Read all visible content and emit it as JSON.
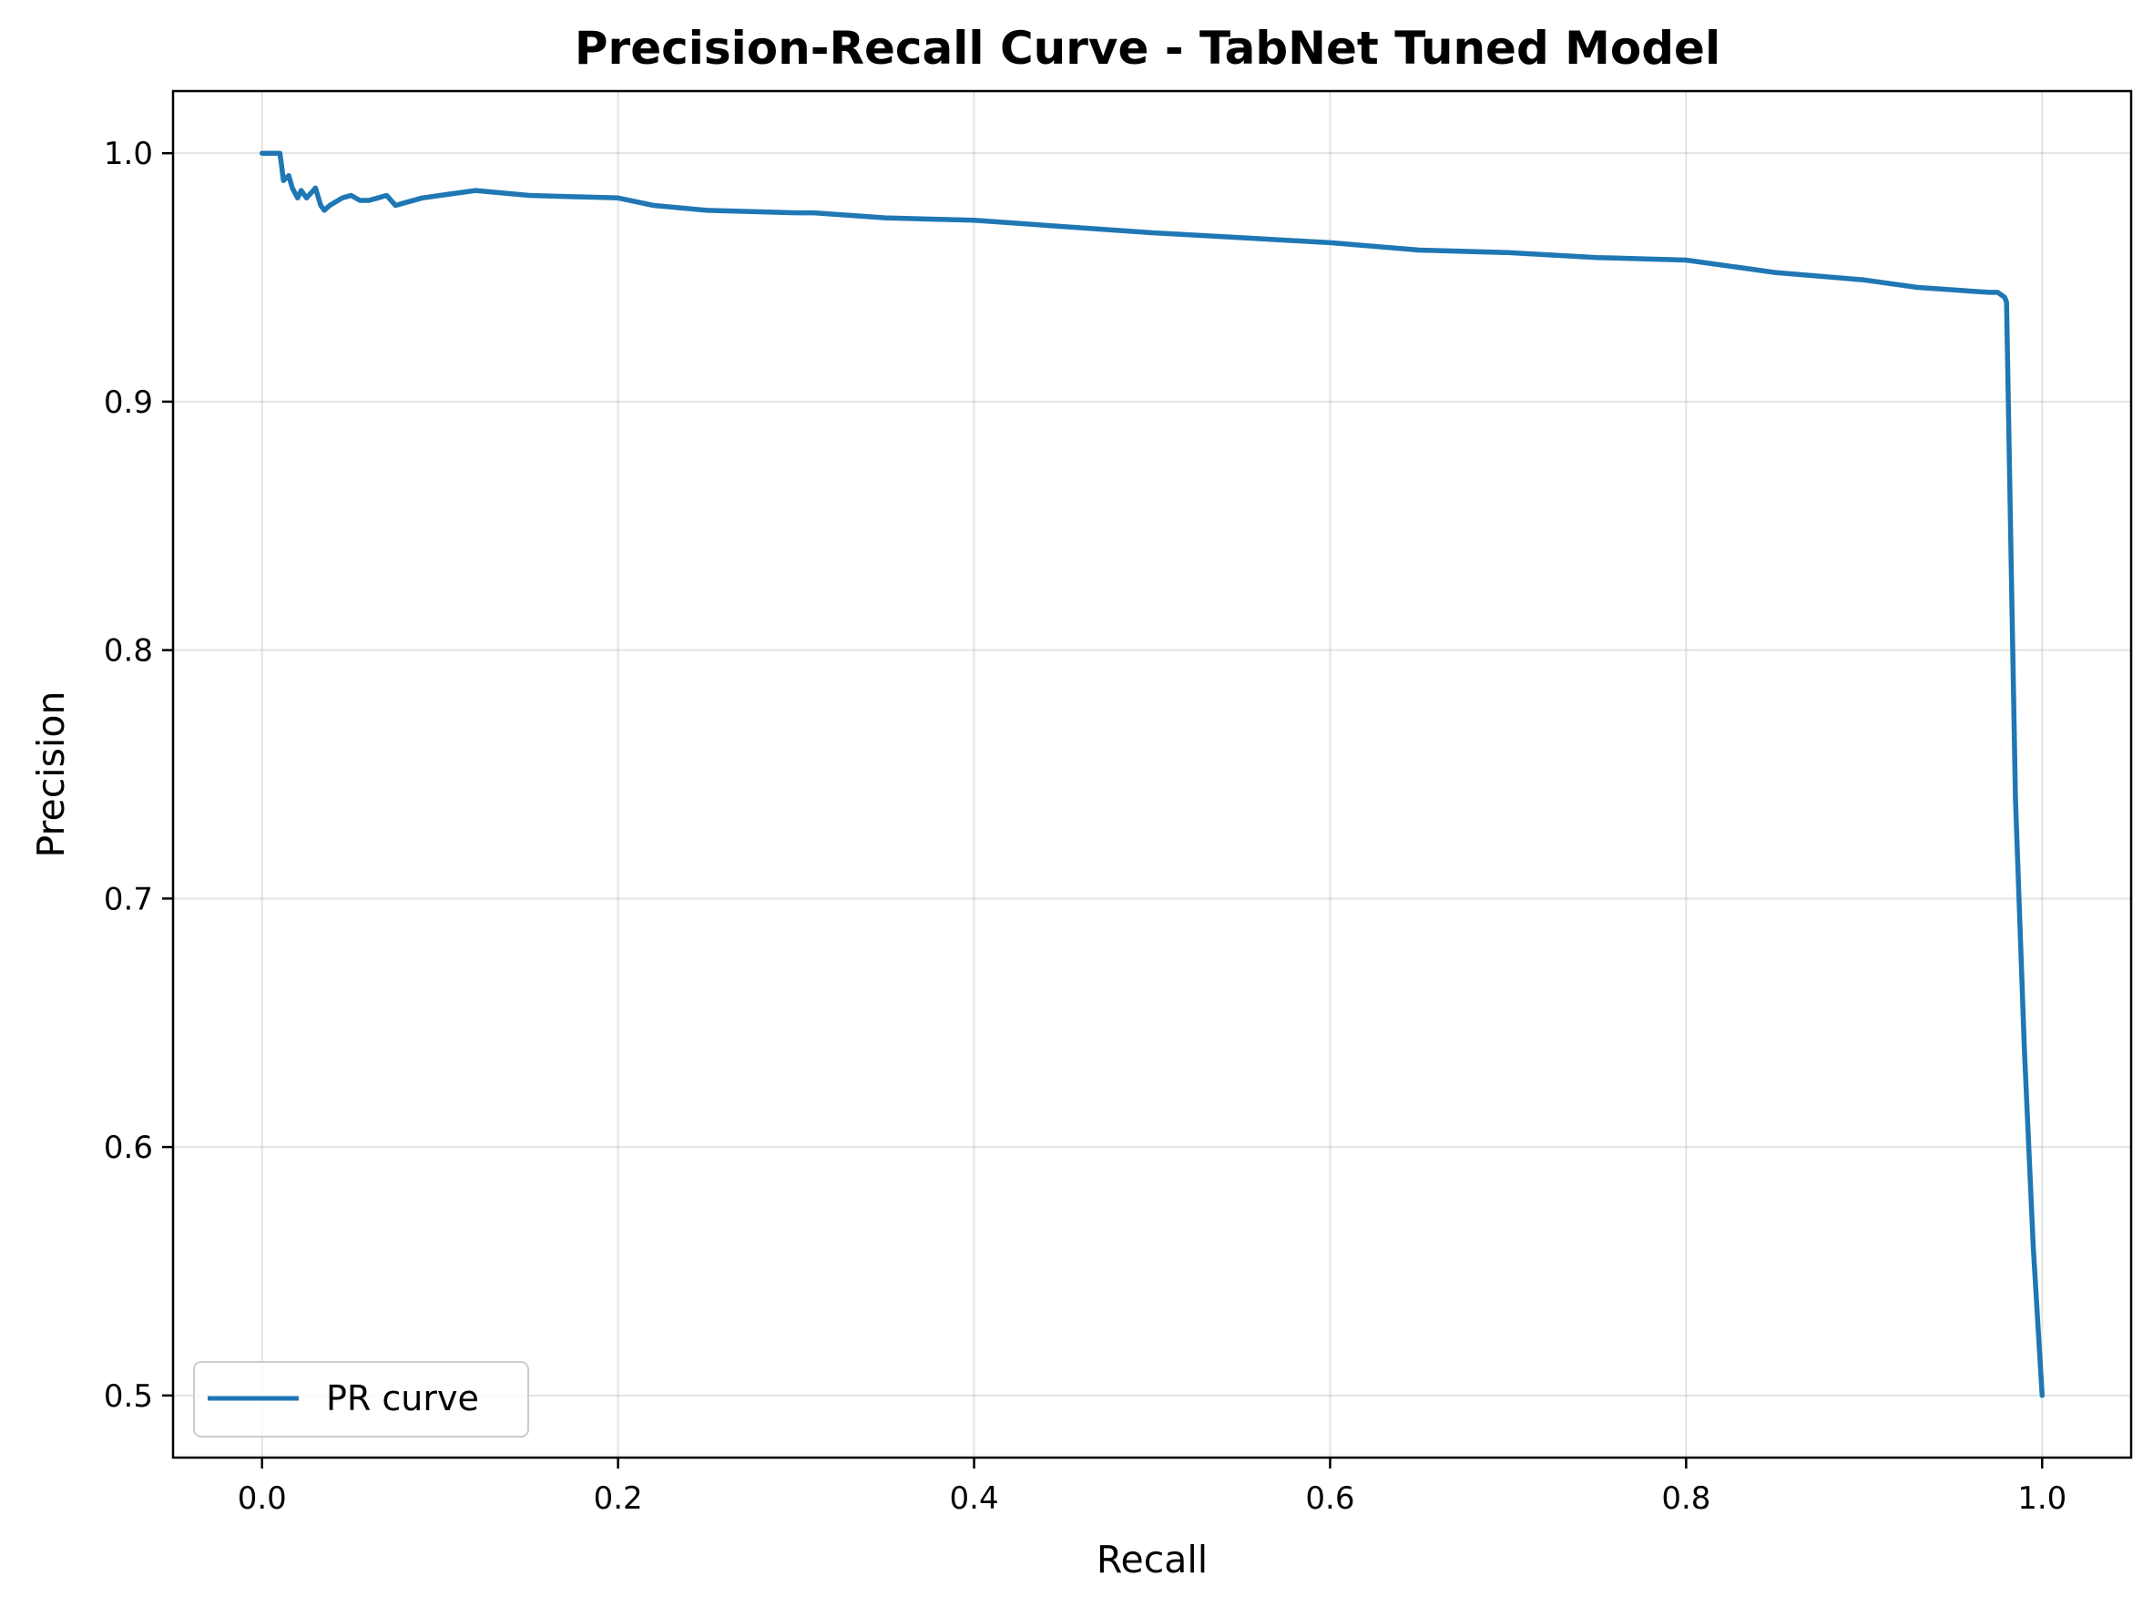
{
  "chart_data": {
    "type": "line",
    "title": "Precision-Recall Curve - TabNet Tuned Model",
    "xlabel": "Recall",
    "ylabel": "Precision",
    "xlim": [
      -0.05,
      1.05
    ],
    "ylim": [
      0.475,
      1.025
    ],
    "xticks": [
      0.0,
      0.2,
      0.4,
      0.6,
      0.8,
      1.0
    ],
    "xtick_labels": [
      "0.0",
      "0.2",
      "0.4",
      "0.6",
      "0.8",
      "1.0"
    ],
    "yticks": [
      0.5,
      0.6,
      0.7,
      0.8,
      0.9,
      1.0
    ],
    "ytick_labels": [
      "0.5",
      "0.6",
      "0.7",
      "0.8",
      "0.9",
      "1.0"
    ],
    "grid": true,
    "legend_position": "lower-left",
    "series": [
      {
        "name": "PR curve",
        "color": "#1f77b4",
        "x": [
          0.0,
          0.01,
          0.011,
          0.012,
          0.015,
          0.017,
          0.02,
          0.022,
          0.025,
          0.03,
          0.033,
          0.035,
          0.038,
          0.045,
          0.05,
          0.055,
          0.06,
          0.065,
          0.07,
          0.075,
          0.08,
          0.09,
          0.1,
          0.12,
          0.15,
          0.2,
          0.22,
          0.25,
          0.3,
          0.31,
          0.35,
          0.4,
          0.5,
          0.55,
          0.6,
          0.65,
          0.7,
          0.75,
          0.8,
          0.85,
          0.9,
          0.93,
          0.97,
          0.975,
          0.979,
          0.98,
          0.983,
          0.985,
          0.99,
          0.995,
          1.0
        ],
        "y": [
          1.0,
          1.0,
          0.995,
          0.989,
          0.991,
          0.986,
          0.982,
          0.985,
          0.982,
          0.986,
          0.979,
          0.977,
          0.979,
          0.982,
          0.983,
          0.981,
          0.981,
          0.982,
          0.983,
          0.979,
          0.98,
          0.982,
          0.983,
          0.985,
          0.983,
          0.982,
          0.979,
          0.977,
          0.976,
          0.976,
          0.974,
          0.973,
          0.968,
          0.966,
          0.964,
          0.961,
          0.96,
          0.958,
          0.957,
          0.952,
          0.949,
          0.946,
          0.944,
          0.944,
          0.942,
          0.94,
          0.82,
          0.74,
          0.64,
          0.56,
          0.5
        ]
      }
    ]
  }
}
